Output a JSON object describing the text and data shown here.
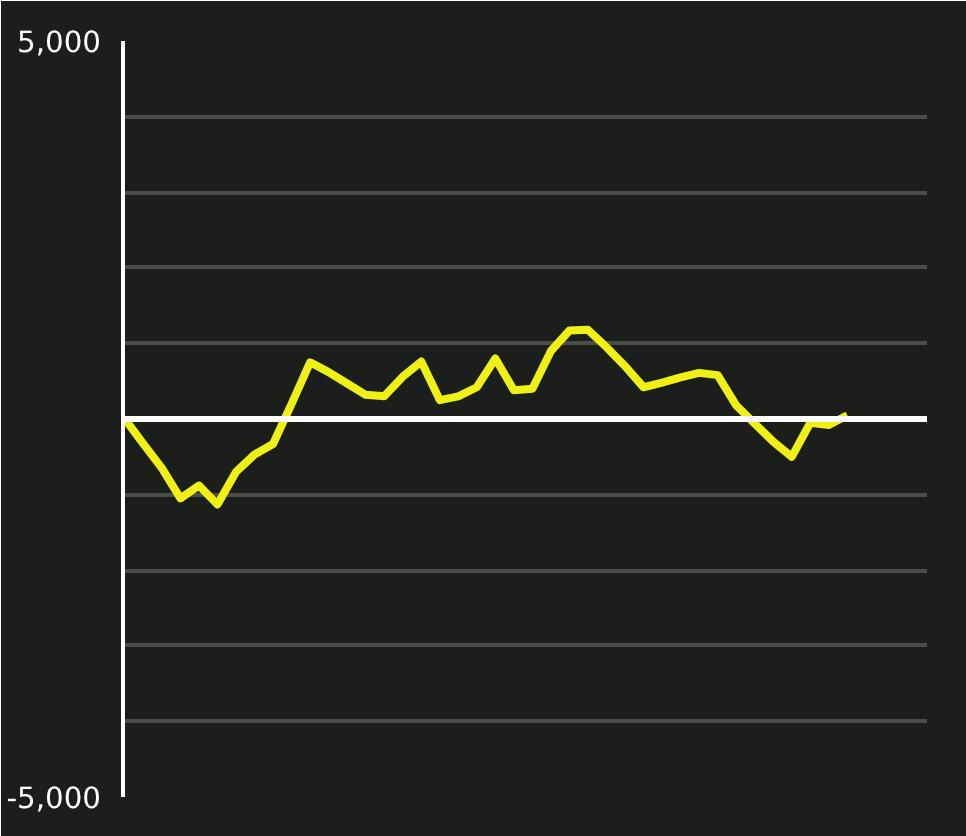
{
  "chart_data": {
    "type": "line",
    "categories": [
      null,
      null,
      null,
      null,
      null,
      null,
      null,
      null,
      null,
      null,
      null,
      null,
      null,
      null,
      null,
      null,
      null,
      null,
      null,
      null,
      null,
      null,
      null,
      null,
      null,
      null,
      null,
      null,
      null,
      null,
      null,
      null,
      null,
      null,
      null,
      null,
      null,
      null,
      null,
      null,
      null,
      null,
      null,
      null
    ],
    "series": [
      {
        "color": "#f0f014",
        "values": [
          0,
          -330,
          -650,
          -1050,
          -880,
          -1130,
          -700,
          -470,
          -330,
          200,
          750,
          620,
          470,
          320,
          300,
          560,
          760,
          250,
          300,
          420,
          800,
          380,
          400,
          900,
          1170,
          1180,
          950,
          700,
          420,
          480,
          550,
          610,
          580,
          180,
          -60,
          -300,
          -500,
          -50,
          -80,
          50,
          null,
          null,
          null,
          null
        ]
      }
    ],
    "ylim": [
      -5000,
      5000
    ],
    "yticks": [
      {
        "value": -5000,
        "label": "-5,000"
      },
      {
        "value": -4000,
        "label": null
      },
      {
        "value": -3000,
        "label": null
      },
      {
        "value": -2000,
        "label": null
      },
      {
        "value": -1000,
        "label": null
      },
      {
        "value": 0,
        "label": null
      },
      {
        "value": 1000,
        "label": null
      },
      {
        "value": 2000,
        "label": null
      },
      {
        "value": 3000,
        "label": null
      },
      {
        "value": 4000,
        "label": null
      },
      {
        "value": 5000,
        "label": "5,000"
      }
    ],
    "grid": "y",
    "tick_labels": "y",
    "ref_lines": [
      {
        "axis": "y",
        "value": 0,
        "color": "#ffffff"
      }
    ]
  }
}
